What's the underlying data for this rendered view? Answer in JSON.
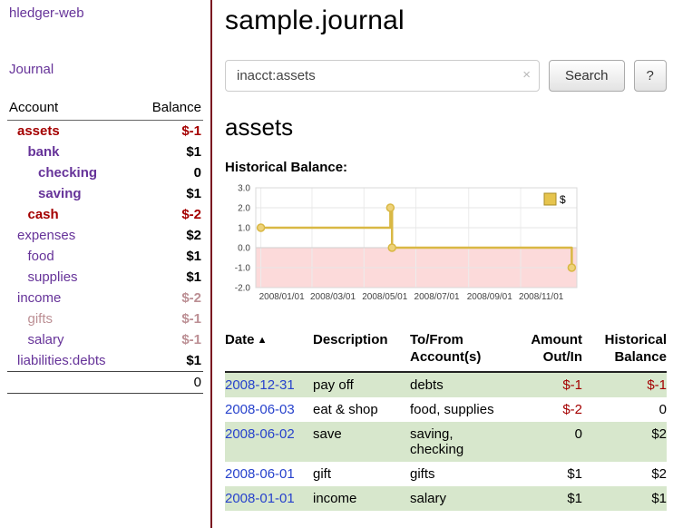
{
  "colors": {
    "purple": "#663399",
    "dark_red": "#a40000",
    "rose": "#bc8f94",
    "link_blue": "#2742cc",
    "row_green": "#d7e7cc",
    "divider_red": "#7a1420"
  },
  "sidebar": {
    "app_title": "hledger-web",
    "journal_link": "Journal",
    "header": {
      "account": "Account",
      "balance": "Balance"
    },
    "accounts": [
      {
        "name": "assets",
        "indent": 0,
        "name_style": "negstrong",
        "balance": "$-1",
        "bal_style": "negstrong"
      },
      {
        "name": "bank",
        "indent": 1,
        "name_style": "strong",
        "balance": "$1",
        "bal_style": "plain"
      },
      {
        "name": "checking",
        "indent": 2,
        "name_style": "strong",
        "balance": "0",
        "bal_style": "plain"
      },
      {
        "name": "saving",
        "indent": 2,
        "name_style": "strong",
        "balance": "$1",
        "bal_style": "plain"
      },
      {
        "name": "cash",
        "indent": 1,
        "name_style": "negstrong",
        "balance": "$-2",
        "bal_style": "negstrong"
      },
      {
        "name": "expenses",
        "indent": 0,
        "name_style": "normal",
        "balance": "$2",
        "bal_style": "plain"
      },
      {
        "name": "food",
        "indent": 1,
        "name_style": "normal",
        "balance": "$1",
        "bal_style": "plain"
      },
      {
        "name": "supplies",
        "indent": 1,
        "name_style": "normal",
        "balance": "$1",
        "bal_style": "plain"
      },
      {
        "name": "income",
        "indent": 0,
        "name_style": "normal",
        "balance": "$-2",
        "bal_style": "rose"
      },
      {
        "name": "gifts",
        "indent": 1,
        "name_style": "rose",
        "balance": "$-1",
        "bal_style": "rose"
      },
      {
        "name": "salary",
        "indent": 1,
        "name_style": "normal",
        "balance": "$-1",
        "bal_style": "rose"
      },
      {
        "name": "liabilities:debts",
        "indent": 0,
        "name_style": "normal",
        "balance": "$1",
        "bal_style": "plain"
      }
    ],
    "total": "0"
  },
  "main": {
    "title": "sample.journal",
    "search": {
      "value": "inacct:assets",
      "clear_icon": "×",
      "button": "Search",
      "help": "?"
    },
    "section_title": "assets",
    "chart_label": "Historical Balance:"
  },
  "chart_data": {
    "type": "line",
    "step": true,
    "title": "Historical Balance",
    "legend": [
      {
        "label": "$",
        "color": "#e6c44d"
      }
    ],
    "x_ticks": [
      "2008/01/01",
      "2008/03/01",
      "2008/05/01",
      "2008/07/01",
      "2008/09/01",
      "2008/11/01"
    ],
    "x_tick_days": [
      0,
      60,
      121,
      182,
      244,
      305
    ],
    "x_domain": [
      "2008-01-01",
      "2008-12-31"
    ],
    "y_ticks": [
      3.0,
      2.0,
      1.0,
      0.0,
      -1.0,
      -2.0
    ],
    "ylim": [
      -2,
      3
    ],
    "points": [
      {
        "date": "2008-01-01",
        "day": 0,
        "value": 1
      },
      {
        "date": "2008-06-01",
        "day": 152,
        "value": 2
      },
      {
        "date": "2008-06-03",
        "day": 154,
        "value": 0
      },
      {
        "date": "2008-12-31",
        "day": 365,
        "value": -1
      }
    ],
    "line_color": "#d9b844",
    "marker_fill": "#eed27a",
    "negative_region_fill": "#fcdada",
    "grid": true,
    "legend_position": "top-right"
  },
  "register": {
    "headers": [
      {
        "key": "date",
        "line1": "Date",
        "line2": "",
        "sort": "▲",
        "align": "left",
        "sortable": true
      },
      {
        "key": "description",
        "line1": "Description",
        "line2": "",
        "sort": "",
        "align": "left",
        "sortable": false
      },
      {
        "key": "accounts",
        "line1": "To/From",
        "line2": "Account(s)",
        "sort": "",
        "align": "left",
        "sortable": false
      },
      {
        "key": "amount",
        "line1": "Amount",
        "line2": "Out/In",
        "sort": "",
        "align": "right",
        "sortable": false
      },
      {
        "key": "balance",
        "line1": "Historical",
        "line2": "Balance",
        "sort": "",
        "align": "right",
        "sortable": false
      }
    ],
    "rows": [
      {
        "date": "2008-12-31",
        "description": "pay off",
        "accounts": "debts",
        "amount": "$-1",
        "amount_neg": true,
        "balance": "$-1",
        "balance_neg": true,
        "green": true
      },
      {
        "date": "2008-06-03",
        "description": "eat & shop",
        "accounts": "food, supplies",
        "amount": "$-2",
        "amount_neg": true,
        "balance": "0",
        "balance_neg": false,
        "green": false
      },
      {
        "date": "2008-06-02",
        "description": "save",
        "accounts": "saving,\nchecking",
        "amount": "0",
        "amount_neg": false,
        "balance": "$2",
        "balance_neg": false,
        "green": true
      },
      {
        "date": "2008-06-01",
        "description": "gift",
        "accounts": "gifts",
        "amount": "$1",
        "amount_neg": false,
        "balance": "$2",
        "balance_neg": false,
        "green": false
      },
      {
        "date": "2008-01-01",
        "description": "income",
        "accounts": "salary",
        "amount": "$1",
        "amount_neg": false,
        "balance": "$1",
        "balance_neg": false,
        "green": true
      }
    ]
  }
}
